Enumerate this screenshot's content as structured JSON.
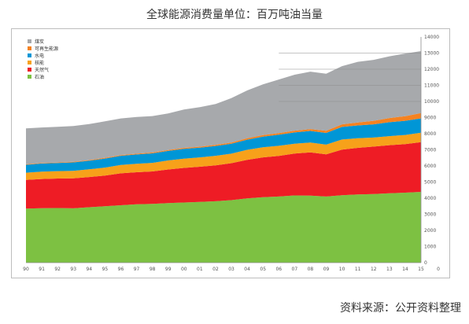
{
  "title": "全球能源消费量单位：百万吨油当量",
  "source": "资料来源：公开资料整理",
  "chart_data": {
    "type": "area",
    "stacked": true,
    "title": "全球能源消费量单位：百万吨油当量",
    "x": [
      "90",
      "91",
      "92",
      "93",
      "94",
      "95",
      "96",
      "97",
      "98",
      "99",
      "00",
      "01",
      "02",
      "03",
      "04",
      "05",
      "06",
      "07",
      "08",
      "09",
      "10",
      "11",
      "12",
      "13",
      "14",
      "15"
    ],
    "xlabel": "",
    "ylabel": "",
    "ylim": [
      0,
      14000
    ],
    "yticks": [
      "0",
      "1000",
      "2000",
      "3000",
      "4000",
      "5000",
      "6000",
      "7000",
      "8000",
      "9000",
      "10000",
      "11000",
      "12000",
      "13000",
      "14000"
    ],
    "x_end_tick": "0",
    "legend_position": "top-left",
    "legend_order": [
      "煤炭",
      "可再生能源",
      "水电",
      "核能",
      "天然气",
      "石油"
    ],
    "series": [
      {
        "name": "石油",
        "color": "#7dc142",
        "values": [
          3350,
          3380,
          3390,
          3370,
          3440,
          3500,
          3560,
          3620,
          3650,
          3700,
          3730,
          3770,
          3810,
          3880,
          3990,
          4060,
          4100,
          4170,
          4160,
          4100,
          4180,
          4230,
          4260,
          4300,
          4340,
          4390
        ]
      },
      {
        "name": "天然气",
        "color": "#ee1c25",
        "values": [
          1780,
          1810,
          1830,
          1860,
          1870,
          1900,
          1980,
          1990,
          2010,
          2080,
          2150,
          2180,
          2230,
          2290,
          2390,
          2470,
          2520,
          2600,
          2680,
          2620,
          2830,
          2890,
          2940,
          2990,
          3010,
          3090
        ]
      },
      {
        "name": "核能",
        "color": "#f7a11a",
        "values": [
          450,
          460,
          460,
          470,
          480,
          500,
          520,
          520,
          530,
          560,
          570,
          580,
          590,
          590,
          620,
          630,
          630,
          610,
          610,
          600,
          630,
          600,
          560,
          560,
          570,
          580
        ]
      },
      {
        "name": "水电",
        "color": "#0096d6",
        "values": [
          490,
          500,
          500,
          520,
          530,
          560,
          570,
          580,
          590,
          590,
          610,
          600,
          610,
          620,
          630,
          660,
          690,
          700,
          720,
          730,
          780,
          790,
          820,
          860,
          880,
          890
        ]
      },
      {
        "name": "可再生能源",
        "color": "#f58220",
        "values": [
          30,
          35,
          35,
          40,
          40,
          45,
          45,
          50,
          55,
          60,
          60,
          65,
          70,
          75,
          85,
          95,
          100,
          110,
          120,
          135,
          160,
          190,
          220,
          260,
          290,
          330
        ]
      },
      {
        "name": "煤炭",
        "color": "#a7a9ac",
        "values": [
          2230,
          2200,
          2210,
          2220,
          2240,
          2260,
          2270,
          2280,
          2260,
          2270,
          2380,
          2450,
          2530,
          2750,
          2970,
          3150,
          3320,
          3470,
          3560,
          3530,
          3610,
          3760,
          3780,
          3830,
          3880,
          3840
        ]
      }
    ]
  }
}
